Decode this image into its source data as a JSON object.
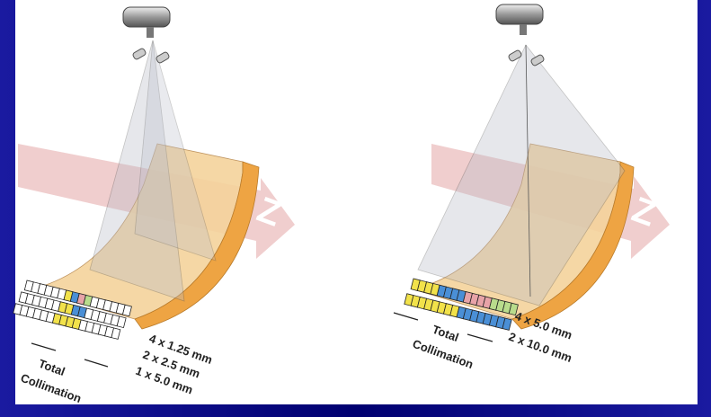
{
  "panels": [
    {
      "axis_label": "Z",
      "total_label": "Total",
      "collimation_label": "Collimation",
      "configs": [
        "4 x 1.25 mm",
        "2 x 2.5 mm",
        "1 x 5.0 mm"
      ]
    },
    {
      "axis_label": "Z",
      "total_label": "Total",
      "collimation_label": "Collimation",
      "configs": [
        "4 x 5.0 mm",
        "2 x 10.0 mm"
      ]
    }
  ]
}
